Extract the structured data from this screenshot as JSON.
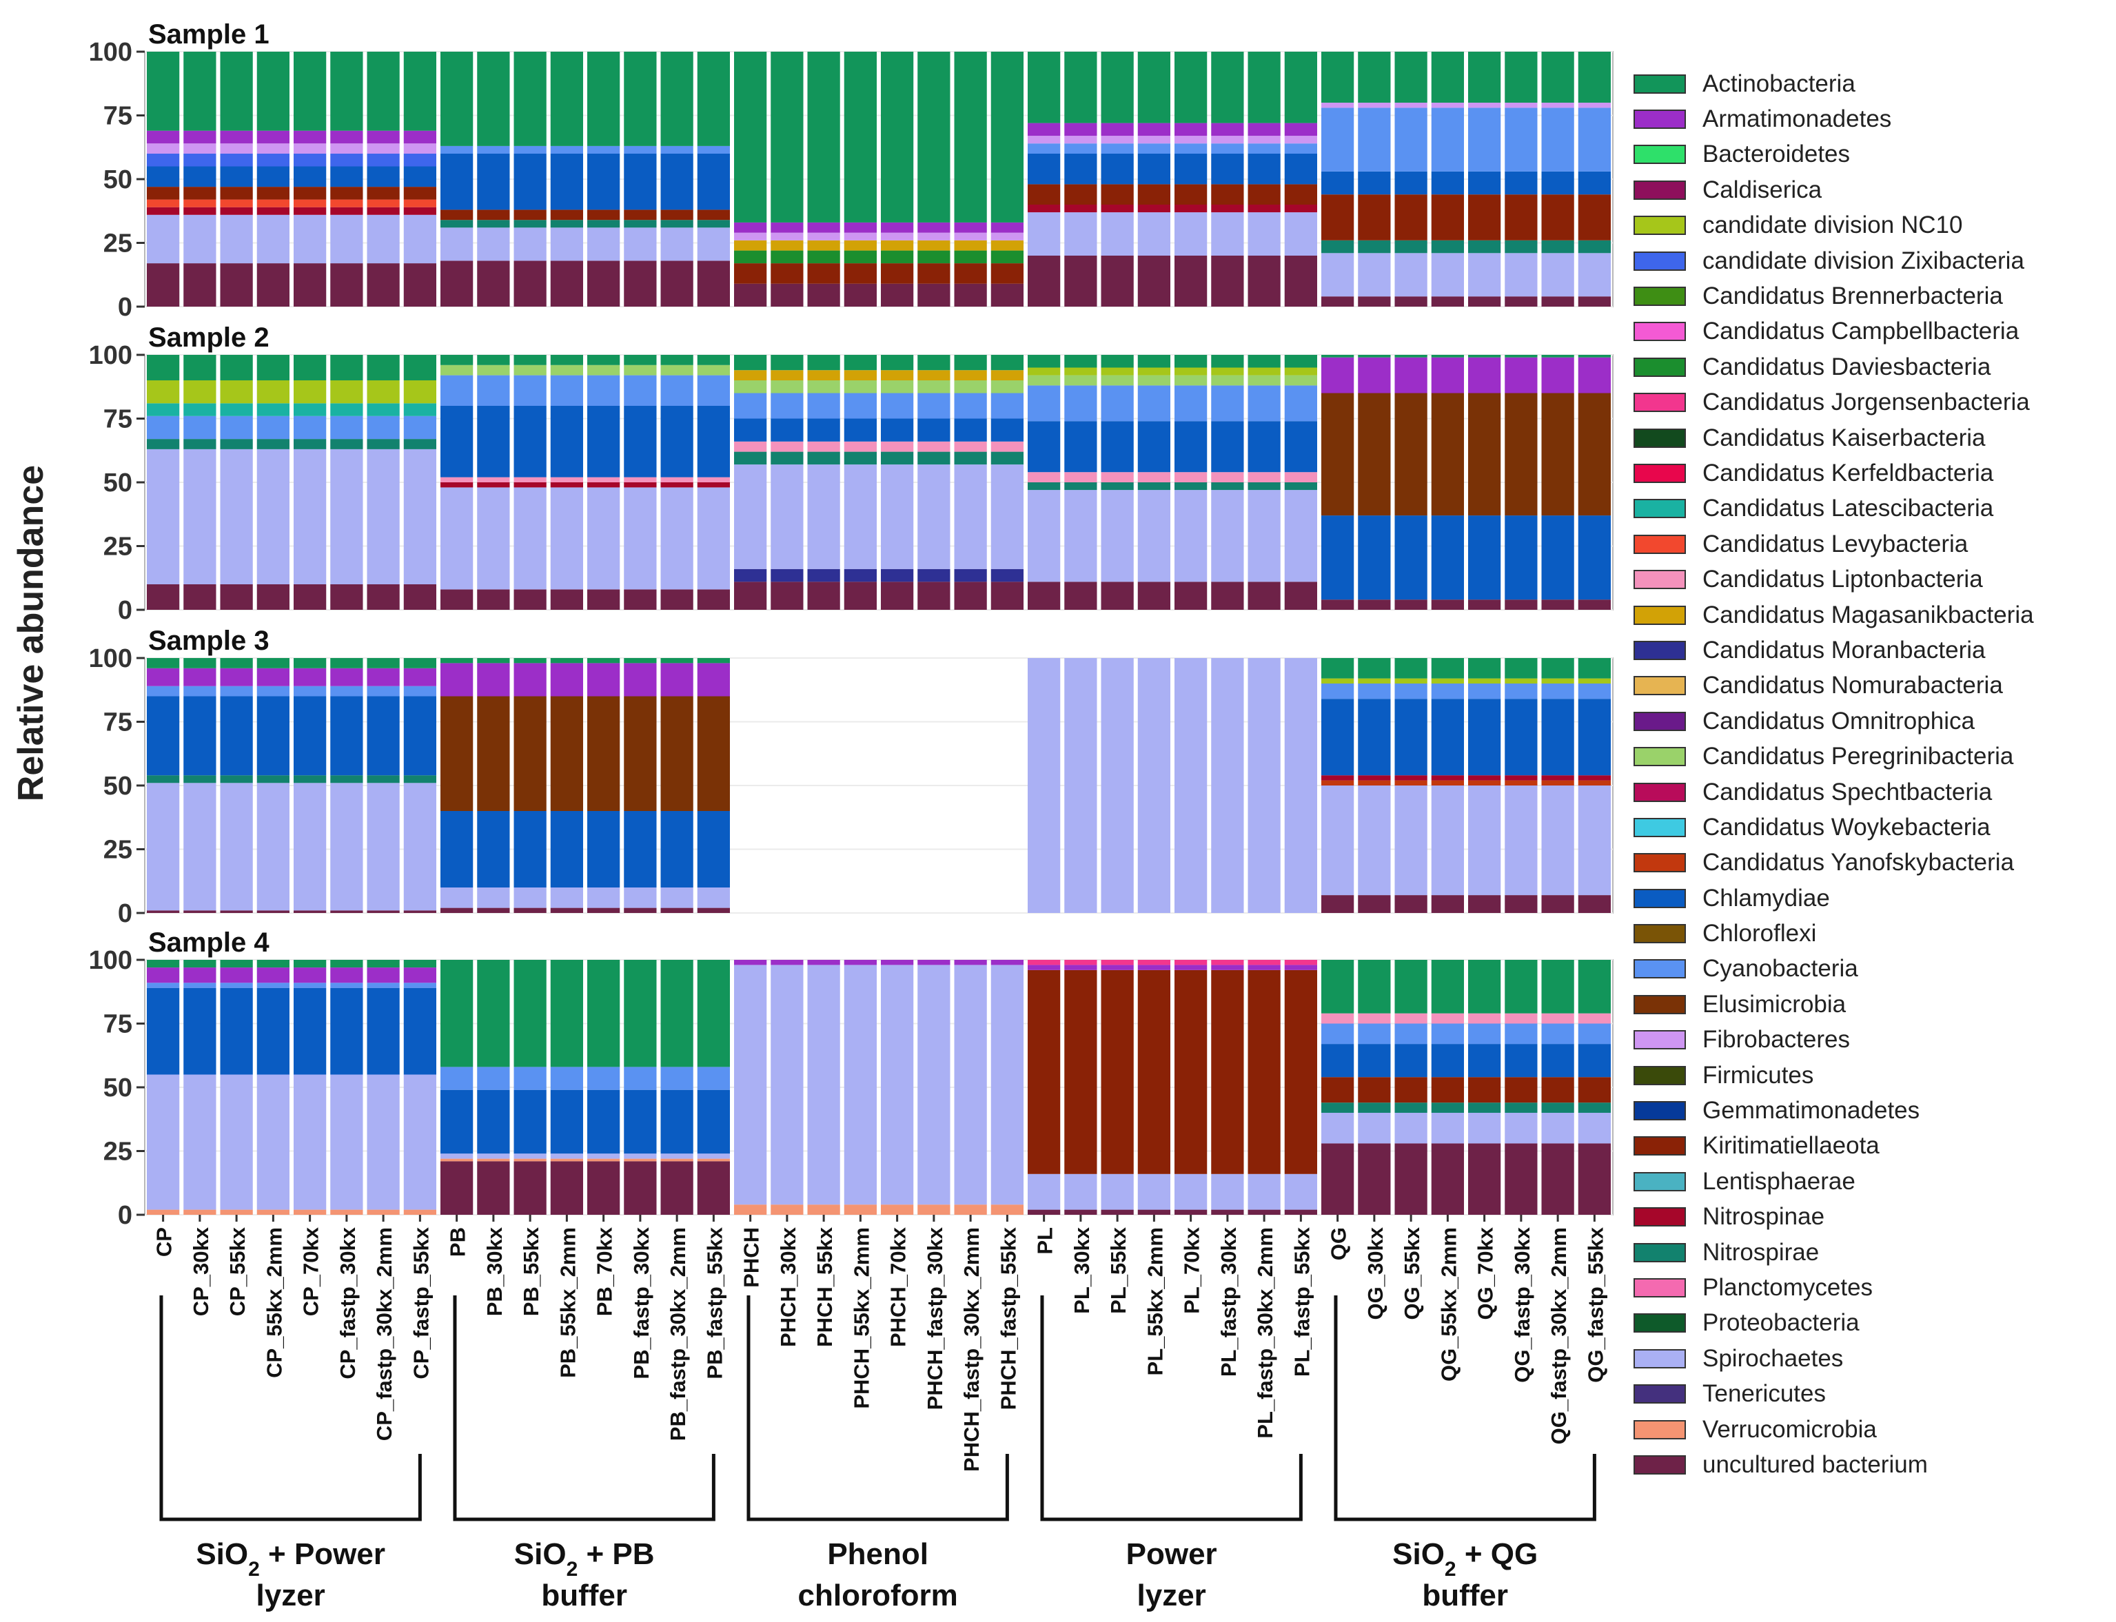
{
  "chart_data": {
    "type": "bar",
    "stacked": true,
    "ylabel": "Relative abundance",
    "ylim": [
      0,
      100
    ],
    "yticks": [
      "0",
      "25",
      "50",
      "75",
      "100"
    ],
    "panels": [
      "Sample 1",
      "Sample 2",
      "Sample 3",
      "Sample 4"
    ],
    "categories": [
      "CP",
      "CP_30kx",
      "CP_55kx",
      "CP_55kx_2mm",
      "CP_70kx",
      "CP_fastp_30kx",
      "CP_fastp_30kx_2mm",
      "CP_fastp_55kx",
      "PB",
      "PB_30kx",
      "PB_55kx",
      "PB_55kx_2mm",
      "PB_70kx",
      "PB_fastp_30kx",
      "PB_fastp_30kx_2mm",
      "PB_fastp_55kx",
      "PHCH",
      "PHCH_30kx",
      "PHCH_55kx",
      "PHCH_55kx_2mm",
      "PHCH_70kx",
      "PHCH_fastp_30kx",
      "PHCH_fastp_30kx_2mm",
      "PHCH_fastp_55kx",
      "PL",
      "PL_30kx",
      "PL_55kx",
      "PL_55kx_2mm",
      "PL_70kx",
      "PL_fastp_30kx",
      "PL_fastp_30kx_2mm",
      "PL_fastp_55kx",
      "QG",
      "QG_30kx",
      "QG_55kx",
      "QG_55kx_2mm",
      "QG_70kx",
      "QG_fastp_30kx",
      "QG_fastp_30kx_2mm",
      "QG_fastp_55kx"
    ],
    "groups": [
      {
        "line1": "SiO",
        "sub": "2",
        "rest": " + Power",
        "line2": "lyzer"
      },
      {
        "line1": "SiO",
        "sub": "2",
        "rest": " + PB",
        "line2": "buffer"
      },
      {
        "line1": "Phenol",
        "sub": "",
        "rest": "",
        "line2": "chloroform"
      },
      {
        "line1": "Power",
        "sub": "",
        "rest": "",
        "line2": "lyzer"
      },
      {
        "line1": "SiO",
        "sub": "2",
        "rest": " + QG",
        "line2": "buffer"
      }
    ],
    "legend": [
      {
        "name": "Actinobacteria",
        "color": "#12955A"
      },
      {
        "name": "Armatimonadetes",
        "color": "#9C2EC8"
      },
      {
        "name": "Bacteroidetes",
        "color": "#2EE06A"
      },
      {
        "name": "Caldiserica",
        "color": "#8E0F5C"
      },
      {
        "name": "candidate division NC10",
        "color": "#A6C61A"
      },
      {
        "name": "candidate division Zixibacteria",
        "color": "#3E66EC"
      },
      {
        "name": "Candidatus Brennerbacteria",
        "color": "#3E8E14"
      },
      {
        "name": "Candidatus Campbellbacteria",
        "color": "#F45AD4"
      },
      {
        "name": "Candidatus Daviesbacteria",
        "color": "#1B8E2E"
      },
      {
        "name": "Candidatus Jorgensenbacteria",
        "color": "#F2368E"
      },
      {
        "name": "Candidatus Kaiserbacteria",
        "color": "#124A1E"
      },
      {
        "name": "Candidatus Kerfeldbacteria",
        "color": "#E8064C"
      },
      {
        "name": "Candidatus Latescibacteria",
        "color": "#1AB2A2"
      },
      {
        "name": "Candidatus Levybacteria",
        "color": "#F2482E"
      },
      {
        "name": "Candidatus Liptonbacteria",
        "color": "#F492BC"
      },
      {
        "name": "Candidatus Magasanikbacteria",
        "color": "#D2A206"
      },
      {
        "name": "Candidatus Moranbacteria",
        "color": "#2E3094"
      },
      {
        "name": "Candidatus Nomurabacteria",
        "color": "#E6B452"
      },
      {
        "name": "Candidatus Omnitrophica",
        "color": "#6A1A8A"
      },
      {
        "name": "Candidatus Peregrinibacteria",
        "color": "#9AD26A"
      },
      {
        "name": "Candidatus Spechtbacteria",
        "color": "#B80C5A"
      },
      {
        "name": "Candidatus Woykebacteria",
        "color": "#3ECAE2"
      },
      {
        "name": "Candidatus Yanofskybacteria",
        "color": "#C2380E"
      },
      {
        "name": "Chlamydiae",
        "color": "#0A5CC2"
      },
      {
        "name": "Chloroflexi",
        "color": "#7A5406"
      },
      {
        "name": "Cyanobacteria",
        "color": "#5A92F2"
      },
      {
        "name": "Elusimicrobia",
        "color": "#7A3206"
      },
      {
        "name": "Fibrobacteres",
        "color": "#CE96F2"
      },
      {
        "name": "Firmicutes",
        "color": "#3A4A0A"
      },
      {
        "name": "Gemmatimonadetes",
        "color": "#063A9A"
      },
      {
        "name": "Kiritimatiellaeota",
        "color": "#8A2206"
      },
      {
        "name": "Lentisphaerae",
        "color": "#4AB2C2"
      },
      {
        "name": "Nitrospinae",
        "color": "#A6062A"
      },
      {
        "name": "Nitrospirae",
        "color": "#12826E"
      },
      {
        "name": "Planctomycetes",
        "color": "#F46AB0"
      },
      {
        "name": "Proteobacteria",
        "color": "#0E5A2A"
      },
      {
        "name": "Spirochaetes",
        "color": "#AAB0F4"
      },
      {
        "name": "Tenericutes",
        "color": "#44307E"
      },
      {
        "name": "Verrucomicrobia",
        "color": "#F49472"
      },
      {
        "name": "uncultured bacterium",
        "color": "#6E2248"
      }
    ]
  }
}
